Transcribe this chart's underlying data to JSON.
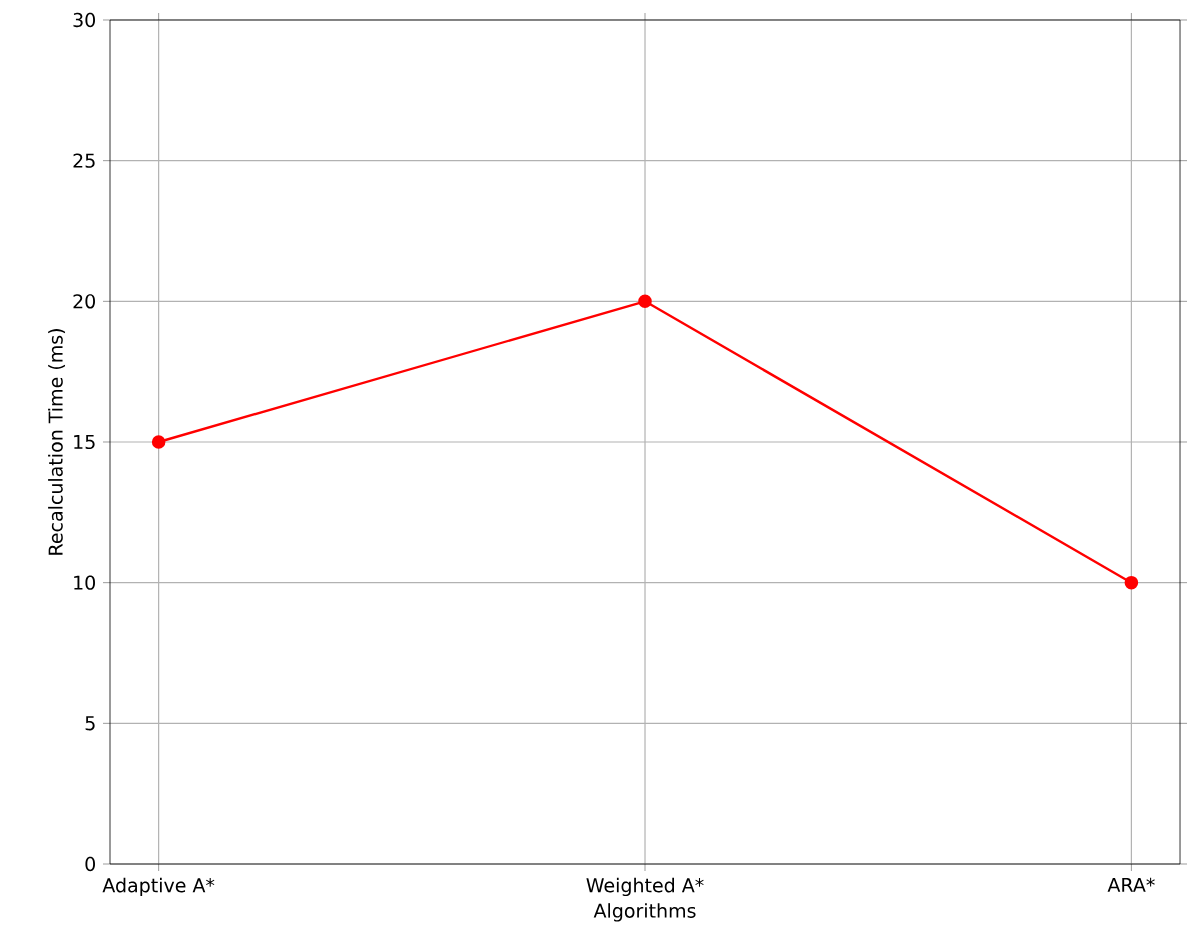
{
  "chart_data": {
    "type": "line",
    "xlabel": "Algorithms",
    "ylabel": "Recalculation Time (ms)",
    "categories": [
      "Adaptive A*",
      "Weighted A*",
      "ARA*"
    ],
    "values": [
      15,
      20,
      10
    ],
    "color": "#ff0000",
    "marker": "circle",
    "ylim": [
      0,
      30
    ],
    "yticks": [
      0,
      5,
      10,
      15,
      20,
      25,
      30
    ],
    "grid": true
  }
}
